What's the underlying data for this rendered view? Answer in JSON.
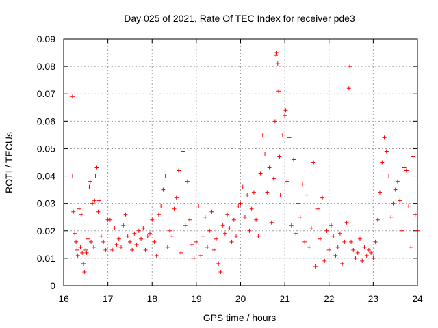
{
  "chart_data": {
    "type": "scatter",
    "title": "Day 025 of 2021, Rate Of TEC Index for receiver pde3",
    "xlabel": "GPS time / hours",
    "ylabel": "ROTI / TECUs",
    "xlim": [
      16,
      24
    ],
    "ylim": [
      0,
      0.09
    ],
    "x_ticks": [
      "16",
      "17",
      "18",
      "19",
      "20",
      "21",
      "22",
      "23",
      "24"
    ],
    "y_ticks": [
      "0",
      "0.01",
      "0.02",
      "0.03",
      "0.04",
      "0.05",
      "0.06",
      "0.07",
      "0.08",
      "0.09"
    ],
    "grid": true,
    "marker": "+",
    "color": "#ff0000",
    "series": [
      {
        "name": "ROTI",
        "points": [
          [
            16.2,
            0.069
          ],
          [
            16.2,
            0.04
          ],
          [
            16.22,
            0.027
          ],
          [
            16.25,
            0.019
          ],
          [
            16.28,
            0.016
          ],
          [
            16.3,
            0.013
          ],
          [
            16.32,
            0.011
          ],
          [
            16.35,
            0.028
          ],
          [
            16.38,
            0.014
          ],
          [
            16.4,
            0.026
          ],
          [
            16.42,
            0.012
          ],
          [
            16.45,
            0.008
          ],
          [
            16.47,
            0.005
          ],
          [
            16.5,
            0.013
          ],
          [
            16.52,
            0.012
          ],
          [
            16.55,
            0.017
          ],
          [
            16.58,
            0.036
          ],
          [
            16.6,
            0.038
          ],
          [
            16.62,
            0.016
          ],
          [
            16.65,
            0.03
          ],
          [
            16.68,
            0.014
          ],
          [
            16.7,
            0.031
          ],
          [
            16.72,
            0.04
          ],
          [
            16.75,
            0.043
          ],
          [
            16.78,
            0.027
          ],
          [
            16.8,
            0.031
          ],
          [
            16.85,
            0.018
          ],
          [
            16.9,
            0.016
          ],
          [
            16.95,
            0.013
          ],
          [
            17.0,
            0.024
          ],
          [
            17.05,
            0.024
          ],
          [
            17.1,
            0.013
          ],
          [
            17.15,
            0.021
          ],
          [
            17.2,
            0.015
          ],
          [
            17.25,
            0.017
          ],
          [
            17.3,
            0.014
          ],
          [
            17.35,
            0.022
          ],
          [
            17.4,
            0.026
          ],
          [
            17.45,
            0.018
          ],
          [
            17.5,
            0.016
          ],
          [
            17.55,
            0.013
          ],
          [
            17.6,
            0.019
          ],
          [
            17.65,
            0.015
          ],
          [
            17.7,
            0.02
          ],
          [
            17.75,
            0.017
          ],
          [
            17.8,
            0.021
          ],
          [
            17.85,
            0.013
          ],
          [
            17.9,
            0.018
          ],
          [
            17.95,
            0.019
          ],
          [
            18.0,
            0.024
          ],
          [
            18.05,
            0.016
          ],
          [
            18.1,
            0.011
          ],
          [
            18.15,
            0.026
          ],
          [
            18.2,
            0.029
          ],
          [
            18.25,
            0.035
          ],
          [
            18.3,
            0.04
          ],
          [
            18.35,
            0.014
          ],
          [
            18.4,
            0.02
          ],
          [
            18.45,
            0.018
          ],
          [
            18.5,
            0.028
          ],
          [
            18.55,
            0.032
          ],
          [
            18.6,
            0.042
          ],
          [
            18.65,
            0.012
          ],
          [
            18.7,
            0.049
          ],
          [
            18.75,
            0.022
          ],
          [
            18.8,
            0.038
          ],
          [
            18.85,
            0.024
          ],
          [
            18.9,
            0.015
          ],
          [
            18.95,
            0.01
          ],
          [
            19.0,
            0.016
          ],
          [
            19.05,
            0.029
          ],
          [
            19.1,
            0.011
          ],
          [
            19.15,
            0.018
          ],
          [
            19.2,
            0.025
          ],
          [
            19.25,
            0.014
          ],
          [
            19.3,
            0.02
          ],
          [
            19.35,
            0.027
          ],
          [
            19.4,
            0.013
          ],
          [
            19.45,
            0.017
          ],
          [
            19.5,
            0.008
          ],
          [
            19.55,
            0.005
          ],
          [
            19.6,
            0.022
          ],
          [
            19.65,
            0.019
          ],
          [
            19.7,
            0.026
          ],
          [
            19.75,
            0.021
          ],
          [
            19.8,
            0.016
          ],
          [
            19.85,
            0.024
          ],
          [
            19.9,
            0.018
          ],
          [
            19.95,
            0.029
          ],
          [
            20.0,
            0.03
          ],
          [
            20.05,
            0.036
          ],
          [
            20.1,
            0.025
          ],
          [
            20.15,
            0.033
          ],
          [
            20.2,
            0.02
          ],
          [
            20.25,
            0.028
          ],
          [
            20.3,
            0.034
          ],
          [
            20.35,
            0.024
          ],
          [
            20.4,
            0.018
          ],
          [
            20.45,
            0.041
          ],
          [
            20.5,
            0.055
          ],
          [
            20.55,
            0.048
          ],
          [
            20.6,
            0.034
          ],
          [
            20.65,
            0.043
          ],
          [
            20.7,
            0.023
          ],
          [
            20.75,
            0.039
          ],
          [
            20.78,
            0.06
          ],
          [
            20.8,
            0.084
          ],
          [
            20.82,
            0.085
          ],
          [
            20.84,
            0.081
          ],
          [
            20.86,
            0.071
          ],
          [
            20.88,
            0.047
          ],
          [
            20.9,
            0.033
          ],
          [
            20.95,
            0.055
          ],
          [
            21.0,
            0.062
          ],
          [
            21.02,
            0.064
          ],
          [
            21.05,
            0.038
          ],
          [
            21.1,
            0.054
          ],
          [
            21.15,
            0.022
          ],
          [
            21.2,
            0.046
          ],
          [
            21.25,
            0.019
          ],
          [
            21.3,
            0.03
          ],
          [
            21.35,
            0.025
          ],
          [
            21.4,
            0.037
          ],
          [
            21.45,
            0.016
          ],
          [
            21.5,
            0.033
          ],
          [
            21.55,
            0.014
          ],
          [
            21.6,
            0.021
          ],
          [
            21.65,
            0.045
          ],
          [
            21.7,
            0.007
          ],
          [
            21.75,
            0.028
          ],
          [
            21.8,
            0.017
          ],
          [
            21.85,
            0.032
          ],
          [
            21.9,
            0.009
          ],
          [
            21.95,
            0.02
          ],
          [
            22.0,
            0.013
          ],
          [
            22.05,
            0.022
          ],
          [
            22.1,
            0.018
          ],
          [
            22.15,
            0.011
          ],
          [
            22.2,
            0.014
          ],
          [
            22.25,
            0.019
          ],
          [
            22.3,
            0.008
          ],
          [
            22.35,
            0.016
          ],
          [
            22.4,
            0.023
          ],
          [
            22.45,
            0.072
          ],
          [
            22.47,
            0.08
          ],
          [
            22.5,
            0.016
          ],
          [
            22.55,
            0.013
          ],
          [
            22.6,
            0.01
          ],
          [
            22.65,
            0.012
          ],
          [
            22.7,
            0.017
          ],
          [
            22.75,
            0.009
          ],
          [
            22.8,
            0.014
          ],
          [
            22.85,
            0.011
          ],
          [
            22.9,
            0.013
          ],
          [
            22.95,
            0.012
          ],
          [
            23.0,
            0.01
          ],
          [
            23.05,
            0.016
          ],
          [
            23.1,
            0.024
          ],
          [
            23.15,
            0.034
          ],
          [
            23.2,
            0.045
          ],
          [
            23.25,
            0.054
          ],
          [
            23.3,
            0.049
          ],
          [
            23.35,
            0.04
          ],
          [
            23.4,
            0.025
          ],
          [
            23.45,
            0.03
          ],
          [
            23.5,
            0.035
          ],
          [
            23.55,
            0.038
          ],
          [
            23.6,
            0.031
          ],
          [
            23.65,
            0.02
          ],
          [
            23.7,
            0.043
          ],
          [
            23.75,
            0.042
          ],
          [
            23.8,
            0.029
          ],
          [
            23.85,
            0.014
          ],
          [
            23.9,
            0.047
          ],
          [
            23.95,
            0.026
          ],
          [
            24.0,
            0.02
          ]
        ]
      }
    ]
  }
}
